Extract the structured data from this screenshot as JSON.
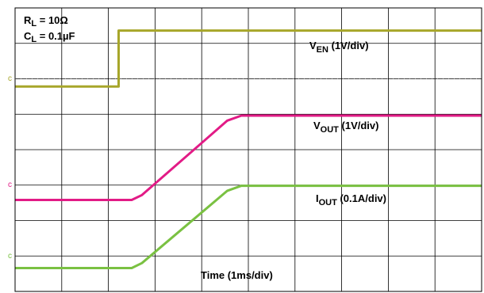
{
  "chart_data": {
    "type": "line",
    "title": "",
    "xlabel": "Time (1ms/div)",
    "ylabel": "",
    "x_unit": "ms",
    "divisions": {
      "x": 10,
      "y": 8
    },
    "xlim": [
      0,
      10
    ],
    "ylim_divisions": [
      0,
      8
    ],
    "grid": true,
    "annotations": {
      "rl": {
        "main": "R",
        "sub": "L",
        "value": " = 10Ω"
      },
      "cl": {
        "main": "C",
        "sub": "L",
        "value": " = 0.1µF"
      }
    },
    "series": [
      {
        "key": "ven",
        "label_main": "V",
        "label_sub": "EN",
        "label_scale": " (1V/div)",
        "color": "#a7a62a",
        "marker": "c",
        "points": [
          [
            0,
            5.78
          ],
          [
            2.22,
            5.78
          ],
          [
            2.22,
            7.36
          ],
          [
            10,
            7.36
          ]
        ]
      },
      {
        "key": "vout",
        "label_main": "V",
        "label_sub": "OUT",
        "label_scale": " (1V/div)",
        "color": "#e21b86",
        "marker": "c",
        "points": [
          [
            0,
            2.58
          ],
          [
            2.5,
            2.58
          ],
          [
            2.72,
            2.72
          ],
          [
            4.55,
            4.82
          ],
          [
            4.85,
            4.96
          ],
          [
            10,
            4.96
          ]
        ]
      },
      {
        "key": "iout",
        "label_main": "I",
        "label_sub": "OUT",
        "label_scale": " (0.1A/div)",
        "color": "#7ac142",
        "marker": "c",
        "points": [
          [
            0,
            0.66
          ],
          [
            2.5,
            0.66
          ],
          [
            2.72,
            0.8
          ],
          [
            4.55,
            2.84
          ],
          [
            4.85,
            2.98
          ],
          [
            10,
            2.98
          ]
        ]
      }
    ]
  }
}
